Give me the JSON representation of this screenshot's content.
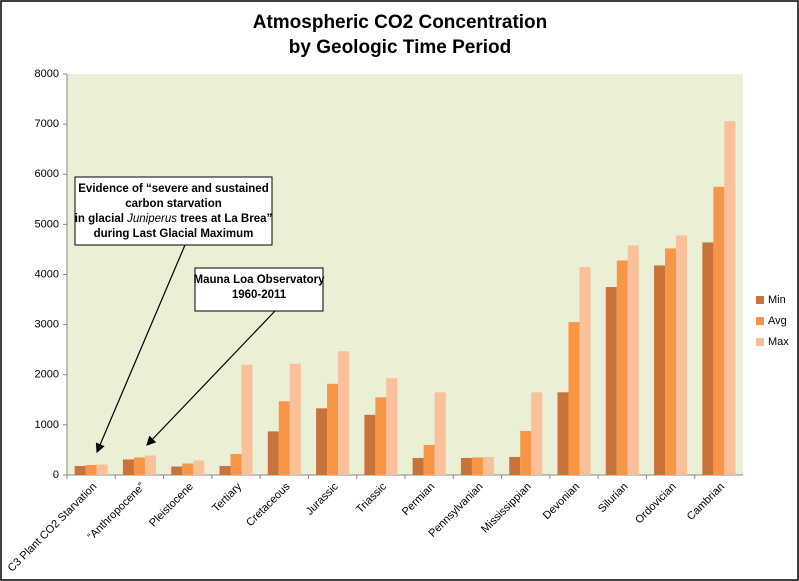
{
  "chart_data": {
    "type": "bar",
    "title": "Atmospheric CO2 Concentration",
    "subtitle": "by Geologic Time Period",
    "categories": [
      "C3 Plant CO2 Starvation",
      "“Anthropocene”",
      "Pleistocene",
      "Tertiary",
      "Cretaceous",
      "Jurassic",
      "Triassic",
      "Permian",
      "Pennsylvanian",
      "Mississippian",
      "Devonian",
      "Silurian",
      "Ordovician",
      "Cambrian"
    ],
    "series": [
      {
        "name": "Min",
        "color": "#c8733a",
        "values": [
          180,
          310,
          170,
          180,
          870,
          1330,
          1200,
          340,
          340,
          360,
          1650,
          3750,
          4180,
          4640
        ]
      },
      {
        "name": "Avg",
        "color": "#f79646",
        "values": [
          200,
          350,
          230,
          420,
          1470,
          1820,
          1550,
          600,
          350,
          880,
          3050,
          4280,
          4520,
          5750
        ]
      },
      {
        "name": "Max",
        "color": "#fac09a",
        "values": [
          210,
          390,
          290,
          2200,
          2220,
          2470,
          1930,
          1650,
          360,
          1650,
          4150,
          4580,
          4780,
          7060
        ]
      }
    ],
    "ylim": [
      0,
      8000
    ],
    "yticks": [
      0,
      1000,
      2000,
      3000,
      4000,
      5000,
      6000,
      7000,
      8000
    ],
    "legend": "right",
    "annotations": [
      {
        "lines": [
          [
            "Evidence of “severe and sustained"
          ],
          [
            "carbon starvation"
          ],
          [
            "in glacial ",
            "Juniperus",
            " trees at La Brea”"
          ],
          [
            "during Last Glacial Maximum"
          ]
        ]
      },
      {
        "lines": [
          [
            "Mauna Loa Observatory"
          ],
          [
            "1960-2011"
          ]
        ]
      }
    ]
  }
}
